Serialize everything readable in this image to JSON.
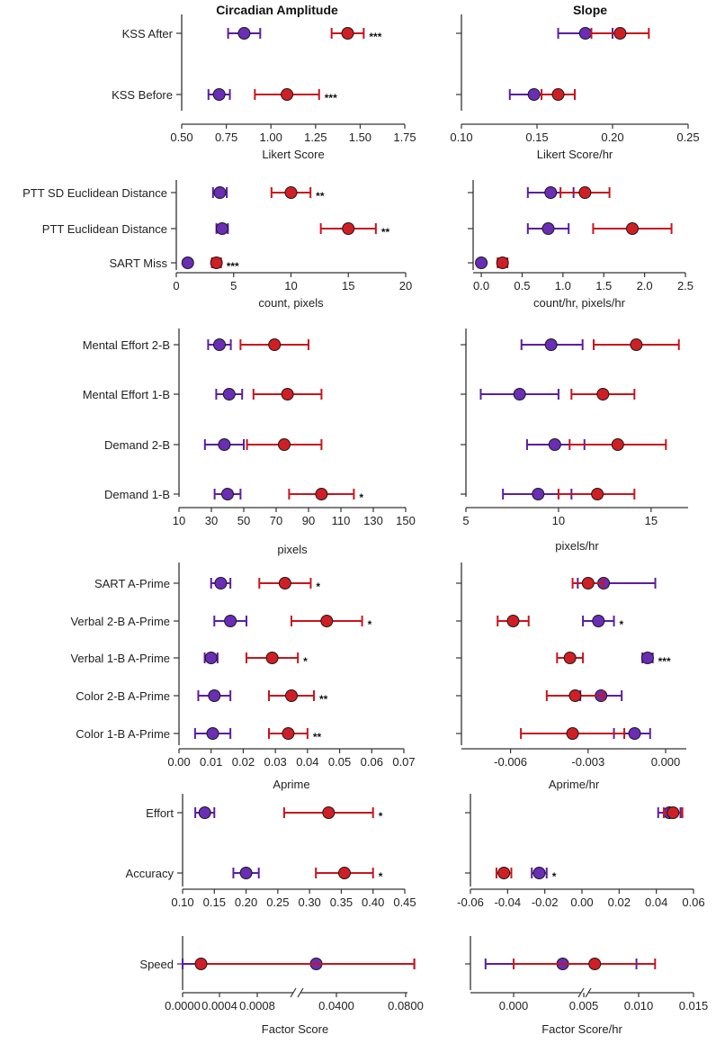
{
  "titles": {
    "left": "Circadian Amplitude",
    "right": "Slope"
  },
  "colors": {
    "purple": "#5b1e9e",
    "red": "#c8151d",
    "purple_fill": "#6a2db5",
    "red_fill": "#cf1f25",
    "axis": "#333333"
  },
  "chart_data": [
    {
      "type": "scatter",
      "side": "left",
      "categories": [
        "KSS After",
        "KSS Before"
      ],
      "xlabel": "Likert Score",
      "xlim": [
        0.5,
        1.75
      ],
      "ticks": [
        0.5,
        0.75,
        1.0,
        1.25,
        1.5,
        1.75
      ],
      "tick_labels": [
        "0.50",
        "0.75",
        "1.00",
        "1.25",
        "1.50",
        "1.75"
      ],
      "series": [
        {
          "name": "purple",
          "points": [
            {
              "cat": 0,
              "value": 0.85,
              "low": 0.76,
              "high": 0.94
            },
            {
              "cat": 1,
              "value": 0.71,
              "low": 0.65,
              "high": 0.77
            }
          ]
        },
        {
          "name": "red",
          "points": [
            {
              "cat": 0,
              "value": 1.43,
              "low": 1.34,
              "high": 1.52
            },
            {
              "cat": 1,
              "value": 1.09,
              "low": 0.91,
              "high": 1.27
            }
          ]
        }
      ],
      "annotations": [
        {
          "cat": 0,
          "text": "***"
        },
        {
          "cat": 1,
          "text": "***"
        }
      ]
    },
    {
      "type": "scatter",
      "side": "right",
      "categories": [
        "KSS After",
        "KSS Before"
      ],
      "xlabel": "Likert Score/hr",
      "xlim": [
        0.1,
        0.25
      ],
      "ticks": [
        0.1,
        0.15,
        0.2,
        0.25
      ],
      "tick_labels": [
        "0.10",
        "0.15",
        "0.20",
        "0.25"
      ],
      "series": [
        {
          "name": "purple",
          "points": [
            {
              "cat": 0,
              "value": 0.182,
              "low": 0.164,
              "high": 0.2
            },
            {
              "cat": 1,
              "value": 0.148,
              "low": 0.132,
              "high": 0.164
            }
          ]
        },
        {
          "name": "red",
          "points": [
            {
              "cat": 0,
              "value": 0.205,
              "low": 0.186,
              "high": 0.224
            },
            {
              "cat": 1,
              "value": 0.164,
              "low": 0.153,
              "high": 0.175
            }
          ]
        }
      ],
      "annotations": []
    },
    {
      "type": "scatter",
      "side": "left",
      "categories": [
        "PTT SD Euclidean Distance",
        "PTT Euclidean Distance",
        "SART Miss"
      ],
      "xlabel": "count, pixels",
      "xlim": [
        0,
        20
      ],
      "ticks": [
        0,
        5,
        10,
        15,
        20
      ],
      "tick_labels": [
        "0",
        "5",
        "10",
        "15",
        "20"
      ],
      "series": [
        {
          "name": "purple",
          "points": [
            {
              "cat": 0,
              "value": 3.8,
              "low": 3.2,
              "high": 4.4
            },
            {
              "cat": 1,
              "value": 4.0,
              "low": 3.5,
              "high": 4.5
            },
            {
              "cat": 2,
              "value": 1.0,
              "low": 0.95,
              "high": 1.05
            }
          ]
        },
        {
          "name": "red",
          "points": [
            {
              "cat": 0,
              "value": 10.0,
              "low": 8.3,
              "high": 11.7
            },
            {
              "cat": 1,
              "value": 15.0,
              "low": 12.6,
              "high": 17.4
            },
            {
              "cat": 2,
              "value": 3.5,
              "low": 3.1,
              "high": 3.9
            }
          ]
        }
      ],
      "annotations": [
        {
          "cat": 0,
          "text": "**"
        },
        {
          "cat": 1,
          "text": "**"
        },
        {
          "cat": 2,
          "text": "***"
        }
      ]
    },
    {
      "type": "scatter",
      "side": "right",
      "categories": [
        "PTT SD Euclidean Distance",
        "PTT Euclidean Distance",
        "SART Miss"
      ],
      "xlabel": "count/hr, pixels/hr",
      "xlim": [
        -0.1,
        2.5
      ],
      "ticks": [
        0.0,
        0.5,
        1.0,
        1.5,
        2.0,
        2.5
      ],
      "tick_labels": [
        "0.0",
        "0.5",
        "1.0",
        "1.5",
        "2.0",
        "2.5"
      ],
      "series": [
        {
          "name": "purple",
          "points": [
            {
              "cat": 0,
              "value": 0.85,
              "low": 0.57,
              "high": 1.13
            },
            {
              "cat": 1,
              "value": 0.82,
              "low": 0.57,
              "high": 1.07
            },
            {
              "cat": 2,
              "value": 0.0,
              "low": -0.02,
              "high": 0.02
            }
          ]
        },
        {
          "name": "red",
          "points": [
            {
              "cat": 0,
              "value": 1.27,
              "low": 0.97,
              "high": 1.57
            },
            {
              "cat": 1,
              "value": 1.85,
              "low": 1.37,
              "high": 2.33
            },
            {
              "cat": 2,
              "value": 0.26,
              "low": 0.2,
              "high": 0.32
            }
          ]
        }
      ],
      "annotations": []
    },
    {
      "type": "scatter",
      "side": "left",
      "categories": [
        "Mental Effort 2-B",
        "Mental Effort 1-B",
        "Demand 2-B",
        "Demand 1-B"
      ],
      "xlabel": "pixels",
      "xlim": [
        10,
        150
      ],
      "ticks": [
        10,
        30,
        50,
        70,
        90,
        110,
        130,
        150
      ],
      "tick_labels": [
        "10",
        "30",
        "50",
        "70",
        "90",
        "110",
        "130",
        "150"
      ],
      "series": [
        {
          "name": "purple",
          "points": [
            {
              "cat": 0,
              "value": 35,
              "low": 28,
              "high": 42
            },
            {
              "cat": 1,
              "value": 41,
              "low": 33,
              "high": 49
            },
            {
              "cat": 2,
              "value": 38,
              "low": 26,
              "high": 50
            },
            {
              "cat": 3,
              "value": 40,
              "low": 32,
              "high": 48
            }
          ]
        },
        {
          "name": "red",
          "points": [
            {
              "cat": 0,
              "value": 69,
              "low": 48,
              "high": 90
            },
            {
              "cat": 1,
              "value": 77,
              "low": 56,
              "high": 98
            },
            {
              "cat": 2,
              "value": 75,
              "low": 52,
              "high": 98
            },
            {
              "cat": 3,
              "value": 98,
              "low": 78,
              "high": 118
            }
          ]
        }
      ],
      "annotations": [
        {
          "cat": 3,
          "text": "*"
        }
      ]
    },
    {
      "type": "scatter",
      "side": "right",
      "categories": [
        "Mental Effort 2-B",
        "Mental Effort 1-B",
        "Demand 2-B",
        "Demand 1-B"
      ],
      "xlabel": "pixels/hr",
      "xlim": [
        5,
        17
      ],
      "ticks": [
        5,
        10,
        15
      ],
      "tick_labels": [
        "5",
        "10",
        "15"
      ],
      "series": [
        {
          "name": "purple",
          "points": [
            {
              "cat": 0,
              "value": 9.6,
              "low": 8.0,
              "high": 11.3
            },
            {
              "cat": 1,
              "value": 7.9,
              "low": 5.8,
              "high": 10.0
            },
            {
              "cat": 2,
              "value": 9.8,
              "low": 8.3,
              "high": 11.4
            },
            {
              "cat": 3,
              "value": 8.9,
              "low": 7.0,
              "high": 10.7
            }
          ]
        },
        {
          "name": "red",
          "points": [
            {
              "cat": 0,
              "value": 14.2,
              "low": 11.9,
              "high": 16.5
            },
            {
              "cat": 1,
              "value": 12.4,
              "low": 10.7,
              "high": 14.1
            },
            {
              "cat": 2,
              "value": 13.2,
              "low": 10.6,
              "high": 15.8
            },
            {
              "cat": 3,
              "value": 12.1,
              "low": 10.0,
              "high": 14.1
            }
          ]
        }
      ],
      "annotations": []
    },
    {
      "type": "scatter",
      "side": "left",
      "categories": [
        "SART A-Prime",
        "Verbal 2-B A-Prime",
        "Verbal 1-B A-Prime",
        "Color 2-B A-Prime",
        "Color 1-B A-Prime"
      ],
      "xlabel": "Aprime",
      "xlim": [
        0,
        0.07
      ],
      "ticks": [
        0,
        0.01,
        0.02,
        0.03,
        0.04,
        0.05,
        0.06,
        0.07
      ],
      "tick_labels": [
        "0.00",
        "0.01",
        "0.02",
        "0.03",
        "0.04",
        "0.05",
        "0.06",
        "0.07"
      ],
      "series": [
        {
          "name": "purple",
          "points": [
            {
              "cat": 0,
              "value": 0.013,
              "low": 0.01,
              "high": 0.016
            },
            {
              "cat": 1,
              "value": 0.016,
              "low": 0.011,
              "high": 0.021
            },
            {
              "cat": 2,
              "value": 0.01,
              "low": 0.008,
              "high": 0.012
            },
            {
              "cat": 3,
              "value": 0.011,
              "low": 0.006,
              "high": 0.016
            },
            {
              "cat": 4,
              "value": 0.0105,
              "low": 0.005,
              "high": 0.016
            }
          ]
        },
        {
          "name": "red",
          "points": [
            {
              "cat": 0,
              "value": 0.033,
              "low": 0.025,
              "high": 0.041
            },
            {
              "cat": 1,
              "value": 0.046,
              "low": 0.035,
              "high": 0.057
            },
            {
              "cat": 2,
              "value": 0.029,
              "low": 0.021,
              "high": 0.037
            },
            {
              "cat": 3,
              "value": 0.035,
              "low": 0.028,
              "high": 0.042
            },
            {
              "cat": 4,
              "value": 0.034,
              "low": 0.028,
              "high": 0.04
            }
          ]
        }
      ],
      "annotations": [
        {
          "cat": 0,
          "text": "*"
        },
        {
          "cat": 1,
          "text": "*"
        },
        {
          "cat": 2,
          "text": "*"
        },
        {
          "cat": 3,
          "text": "**"
        },
        {
          "cat": 4,
          "text": "**"
        }
      ]
    },
    {
      "type": "scatter",
      "side": "right",
      "categories": [
        "SART A-Prime",
        "Verbal 2-B A-Prime",
        "Verbal 1-B A-Prime",
        "Color 2-B A-Prime",
        "Color 1-B A-Prime"
      ],
      "xlabel": "Aprime/hr",
      "xlim": [
        -0.0079,
        0.0008
      ],
      "ticks": [
        -0.006,
        -0.003,
        0.0
      ],
      "tick_labels": [
        "-0.006",
        "-0.003",
        "0.000"
      ],
      "series": [
        {
          "name": "purple",
          "points": [
            {
              "cat": 0,
              "value": -0.0024,
              "low": -0.0034,
              "high": -0.0004
            },
            {
              "cat": 1,
              "value": -0.0026,
              "low": -0.0032,
              "high": -0.002
            },
            {
              "cat": 2,
              "value": -0.0007,
              "low": -0.0009,
              "high": -0.0005
            },
            {
              "cat": 3,
              "value": -0.0025,
              "low": -0.0033,
              "high": -0.0017
            },
            {
              "cat": 4,
              "value": -0.0012,
              "low": -0.002,
              "high": -0.0006
            }
          ]
        },
        {
          "name": "red",
          "points": [
            {
              "cat": 0,
              "value": -0.003,
              "low": -0.0036,
              "high": -0.0024
            },
            {
              "cat": 1,
              "value": -0.0059,
              "low": -0.0065,
              "high": -0.0053
            },
            {
              "cat": 2,
              "value": -0.0037,
              "low": -0.0042,
              "high": -0.0032
            },
            {
              "cat": 3,
              "value": -0.0035,
              "low": -0.0046,
              "high": -0.0024
            },
            {
              "cat": 4,
              "value": -0.0036,
              "low": -0.0056,
              "high": -0.0016
            }
          ]
        }
      ],
      "annotations": [
        {
          "cat": 1,
          "text": "*"
        },
        {
          "cat": 2,
          "text": "***"
        }
      ]
    },
    {
      "type": "scatter",
      "side": "left",
      "categories": [
        "Effort",
        "Accuracy"
      ],
      "xlabel": "",
      "xlim": [
        0.1,
        0.45
      ],
      "ticks": [
        0.1,
        0.15,
        0.2,
        0.25,
        0.3,
        0.35,
        0.4,
        0.45
      ],
      "tick_labels": [
        "0.10",
        "0.15",
        "0.20",
        "0.25",
        "0.30",
        "0.35",
        "0.40",
        "0.45"
      ],
      "series": [
        {
          "name": "purple",
          "points": [
            {
              "cat": 0,
              "value": 0.135,
              "low": 0.12,
              "high": 0.15
            },
            {
              "cat": 1,
              "value": 0.2,
              "low": 0.18,
              "high": 0.22
            }
          ]
        },
        {
          "name": "red",
          "points": [
            {
              "cat": 0,
              "value": 0.33,
              "low": 0.26,
              "high": 0.4
            },
            {
              "cat": 1,
              "value": 0.355,
              "low": 0.31,
              "high": 0.4
            }
          ]
        }
      ],
      "annotations": [
        {
          "cat": 0,
          "text": "*"
        },
        {
          "cat": 1,
          "text": "*"
        }
      ]
    },
    {
      "type": "scatter",
      "side": "right",
      "categories": [
        "Effort",
        "Accuracy"
      ],
      "xlabel": "",
      "xlim": [
        -0.06,
        0.06
      ],
      "ticks": [
        -0.06,
        -0.04,
        -0.02,
        0.0,
        0.02,
        0.04,
        0.06
      ],
      "tick_labels": [
        "-0.06",
        "-0.04",
        "-0.02",
        "0.00",
        "0.02",
        "0.04",
        "0.06"
      ],
      "series": [
        {
          "name": "purple",
          "points": [
            {
              "cat": 0,
              "value": 0.047,
              "low": 0.041,
              "high": 0.053
            },
            {
              "cat": 1,
              "value": -0.023,
              "low": -0.027,
              "high": -0.019
            }
          ]
        },
        {
          "name": "red",
          "points": [
            {
              "cat": 0,
              "value": 0.049,
              "low": 0.044,
              "high": 0.054
            },
            {
              "cat": 1,
              "value": -0.042,
              "low": -0.046,
              "high": -0.038
            }
          ]
        }
      ],
      "annotations": [
        {
          "cat": 1,
          "text": "*"
        }
      ]
    },
    {
      "type": "scatter",
      "side": "left",
      "broken_axis": true,
      "categories": [
        "Speed"
      ],
      "xlabel": "Factor Score",
      "ticks": [
        0.0,
        0.0004,
        0.0008,
        0.04,
        0.08
      ],
      "tick_labels": [
        "0.0000",
        "0.0004",
        "0.0008",
        "0.0400",
        "0.0800"
      ],
      "series": [
        {
          "name": "purple",
          "points": [
            {
              "cat": 0,
              "value": 0.03,
              "low": 0.0,
              "high": 0.085
            }
          ]
        },
        {
          "name": "red",
          "points": [
            {
              "cat": 0,
              "value": 0.0002,
              "low": 0.0002,
              "high": 0.085
            }
          ]
        }
      ],
      "annotations": []
    },
    {
      "type": "scatter",
      "side": "right",
      "broken_axis": true,
      "categories": [
        "Speed"
      ],
      "xlabel": "Factor Score/hr",
      "ticks": [
        0.0,
        0.005,
        0.01,
        0.015
      ],
      "tick_labels": [
        "0.000",
        "0.005",
        "0.010",
        "0.015"
      ],
      "series": [
        {
          "name": "purple",
          "points": [
            {
              "cat": 0,
              "value": 0.0035,
              "low": -0.002,
              "high": 0.0098
            }
          ]
        },
        {
          "name": "red",
          "points": [
            {
              "cat": 0,
              "value": 0.006,
              "low": 0.0,
              "high": 0.0115
            }
          ]
        }
      ],
      "annotations": []
    }
  ]
}
